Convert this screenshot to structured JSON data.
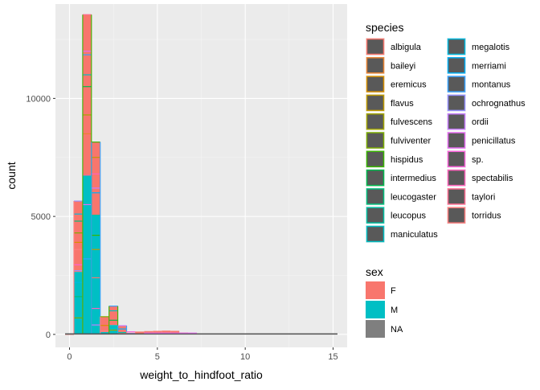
{
  "chart_data": {
    "type": "bar",
    "subtype": "stacked histogram",
    "xlabel": "weight_to_hindfoot_ratio",
    "ylabel": "count",
    "xlim": [
      -0.8,
      15.8
    ],
    "ylim": [
      -550,
      14000
    ],
    "x_ticks": [
      0,
      5,
      10,
      15
    ],
    "x_tick_labels": [
      "0",
      "5",
      "10",
      "15"
    ],
    "y_ticks": [
      0,
      5000,
      10000
    ],
    "y_tick_labels": [
      "0",
      "5000",
      "10000"
    ],
    "grid": true,
    "bin_width": 0.5,
    "bin_starts": [
      -0.25,
      0.25,
      0.75,
      1.25,
      1.75,
      2.25,
      2.75,
      3.25,
      3.75,
      4.25,
      4.75,
      5.25,
      5.75,
      6.25,
      6.75,
      7.25,
      7.75,
      8.25,
      8.75,
      9.25,
      9.75,
      10.25,
      10.75,
      11.25,
      11.75,
      12.25,
      12.75,
      13.25,
      13.75,
      14.25,
      14.75
    ],
    "series": [
      {
        "name": "M",
        "fill": "#00BFC4",
        "values": [
          0,
          2650,
          6750,
          5050,
          100,
          400,
          50,
          0,
          0,
          0,
          0,
          0,
          0,
          0,
          0,
          0,
          0,
          0,
          0,
          0,
          0,
          0,
          0,
          0,
          0,
          0,
          0,
          0,
          0,
          0,
          0
        ]
      },
      {
        "name": "F",
        "fill": "#F8766D",
        "values": [
          0,
          3000,
          6800,
          3100,
          650,
          800,
          320,
          70,
          120,
          140,
          150,
          160,
          150,
          80,
          20,
          10,
          0,
          0,
          0,
          0,
          0,
          0,
          0,
          0,
          0,
          0,
          0,
          0,
          0,
          0,
          0
        ]
      },
      {
        "name": "NA",
        "fill": "#7F7F7F",
        "values": [
          10,
          0,
          0,
          0,
          0,
          0,
          0,
          0,
          0,
          0,
          0,
          0,
          0,
          0,
          0,
          0,
          0,
          0,
          0,
          0,
          0,
          0,
          0,
          0,
          0,
          0,
          0,
          0,
          0,
          0,
          0
        ]
      }
    ],
    "species_outline_cuts": [
      [
        0
      ],
      [
        700,
        1600,
        2200,
        2700,
        2950,
        3600,
        3900,
        4300,
        4800,
        5100,
        5650
      ],
      [
        1200,
        3200,
        5500,
        6750,
        8500,
        9300,
        10500,
        11000,
        11850,
        12000,
        13550
      ],
      [
        400,
        1100,
        2400,
        3600,
        4200,
        5050,
        6000,
        6200,
        6800,
        7350,
        7500,
        8150
      ],
      [
        150,
        380,
        750
      ],
      [
        180,
        600,
        1000,
        1200
      ],
      [
        80,
        230,
        370
      ],
      [
        40,
        110
      ]
    ],
    "legends": [
      {
        "title": "species",
        "entries": [
          "albigula",
          "baileyi",
          "eremicus",
          "flavus",
          "fulvescens",
          "fulviventer",
          "hispidus",
          "intermedius",
          "leucogaster",
          "leucopus",
          "maniculatus",
          "megalotis",
          "merriami",
          "montanus",
          "ochrognathus",
          "ordii",
          "penicillatus",
          "sp.",
          "spectabilis",
          "taylori",
          "torridus"
        ],
        "outline_colors": [
          "#F8766D",
          "#EA8331",
          "#D89000",
          "#C09B00",
          "#A3A500",
          "#7CAE00",
          "#39B600",
          "#00BB4E",
          "#00BF7D",
          "#00C1A3",
          "#00BFC4",
          "#00BAE0",
          "#00B0F6",
          "#35A2FF",
          "#9590FF",
          "#C77CFF",
          "#E76BF3",
          "#FA62DB",
          "#FF62BC",
          "#FF6C91",
          "#FF7F7F"
        ],
        "key_fill": "#595959",
        "columns": 2
      },
      {
        "title": "sex",
        "entries": [
          "F",
          "M",
          "NA"
        ],
        "fills": [
          "#F8766D",
          "#00BFC4",
          "#7F7F7F"
        ]
      }
    ],
    "colors": {
      "panel": "#EBEBEB",
      "grid_major": "#FFFFFF",
      "axis_text": "#4D4D4D"
    }
  }
}
